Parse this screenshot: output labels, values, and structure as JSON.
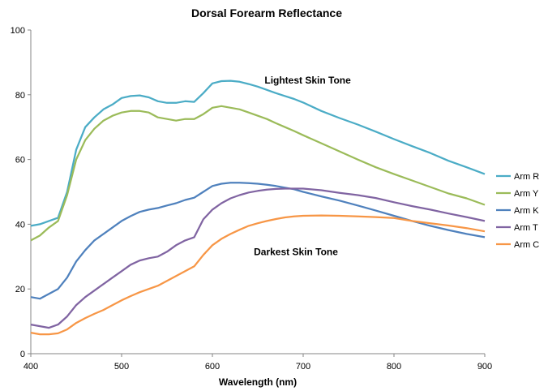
{
  "chart_data": {
    "type": "line",
    "title": "Dorsal Forearm Reflectance",
    "xlabel": "Wavelength (nm)",
    "ylabel": "",
    "xlim": [
      400,
      900
    ],
    "ylim": [
      0,
      100
    ],
    "xticks": [
      400,
      500,
      600,
      700,
      800,
      900
    ],
    "yticks": [
      0,
      20,
      40,
      60,
      80,
      100
    ],
    "grid": false,
    "legend_position": "right",
    "annotations": [
      {
        "text": "Lightest Skin Tone",
        "x": 705,
        "y": 83.5
      },
      {
        "text": "Darkest Skin Tone",
        "x": 692,
        "y": 30.5
      }
    ],
    "series": [
      {
        "name": "Arm R",
        "color": "#4BACC6",
        "x": [
          400,
          410,
          420,
          430,
          440,
          450,
          460,
          470,
          480,
          490,
          500,
          510,
          520,
          530,
          540,
          550,
          560,
          570,
          580,
          590,
          600,
          610,
          620,
          630,
          640,
          650,
          660,
          670,
          680,
          690,
          700,
          720,
          740,
          760,
          780,
          800,
          820,
          840,
          860,
          880,
          900
        ],
        "y": [
          39.5,
          40,
          41,
          42,
          50,
          63,
          70,
          73,
          75.5,
          77,
          79,
          79.6,
          79.8,
          79.2,
          78,
          77.5,
          77.5,
          78,
          77.8,
          80.5,
          83.5,
          84.2,
          84.3,
          84,
          83.3,
          82.5,
          81.5,
          80.5,
          79.6,
          78.7,
          77.6,
          75,
          72.8,
          70.8,
          68.6,
          66.3,
          64.1,
          62,
          59.6,
          57.6,
          55.5
        ]
      },
      {
        "name": "Arm Y",
        "color": "#9BBB59",
        "x": [
          400,
          410,
          420,
          430,
          440,
          450,
          460,
          470,
          480,
          490,
          500,
          510,
          520,
          530,
          540,
          550,
          560,
          570,
          580,
          590,
          600,
          610,
          620,
          630,
          640,
          650,
          660,
          670,
          680,
          690,
          700,
          720,
          740,
          760,
          780,
          800,
          820,
          840,
          860,
          880,
          900
        ],
        "y": [
          35,
          36.5,
          39,
          41,
          49,
          60,
          66,
          69.5,
          72,
          73.5,
          74.5,
          75,
          75,
          74.5,
          73,
          72.5,
          72,
          72.5,
          72.5,
          74,
          76,
          76.5,
          76,
          75.5,
          74.5,
          73.5,
          72.5,
          71.2,
          70,
          68.8,
          67.5,
          65,
          62.5,
          60,
          57.6,
          55.5,
          53.5,
          51.5,
          49.5,
          48,
          46
        ]
      },
      {
        "name": "Arm K",
        "color": "#4F81BD",
        "x": [
          400,
          410,
          420,
          430,
          440,
          450,
          460,
          470,
          480,
          490,
          500,
          510,
          520,
          530,
          540,
          550,
          560,
          570,
          580,
          590,
          600,
          610,
          620,
          630,
          640,
          650,
          660,
          670,
          680,
          690,
          700,
          720,
          740,
          760,
          780,
          800,
          820,
          840,
          860,
          880,
          900
        ],
        "y": [
          17.5,
          17,
          18.5,
          20,
          23.5,
          28.5,
          32,
          35,
          37,
          39,
          41,
          42.5,
          43.8,
          44.5,
          45,
          45.8,
          46.5,
          47.5,
          48.2,
          50,
          51.8,
          52.5,
          52.8,
          52.8,
          52.7,
          52.5,
          52.2,
          51.8,
          51.3,
          50.8,
          50,
          48.6,
          47.3,
          45.8,
          44.2,
          42.6,
          41,
          39.5,
          38.2,
          37,
          36
        ]
      },
      {
        "name": "Arm T",
        "color": "#8064A2",
        "x": [
          400,
          410,
          420,
          430,
          440,
          450,
          460,
          470,
          480,
          490,
          500,
          510,
          520,
          530,
          540,
          550,
          560,
          570,
          580,
          590,
          600,
          610,
          620,
          630,
          640,
          650,
          660,
          670,
          680,
          690,
          700,
          720,
          740,
          760,
          780,
          800,
          820,
          840,
          860,
          880,
          900
        ],
        "y": [
          9,
          8.5,
          8,
          9,
          11.5,
          15,
          17.5,
          19.5,
          21.5,
          23.5,
          25.5,
          27.5,
          28.8,
          29.5,
          30,
          31.5,
          33.5,
          35,
          36,
          41.5,
          44.5,
          46.5,
          48,
          49,
          49.8,
          50.3,
          50.7,
          50.9,
          51,
          51,
          51,
          50.5,
          49.7,
          49,
          48.1,
          46.8,
          45.6,
          44.5,
          43.3,
          42.2,
          41
        ]
      },
      {
        "name": "Arm C",
        "color": "#F79646",
        "x": [
          400,
          410,
          420,
          430,
          440,
          450,
          460,
          470,
          480,
          490,
          500,
          510,
          520,
          530,
          540,
          550,
          560,
          570,
          580,
          590,
          600,
          610,
          620,
          630,
          640,
          650,
          660,
          670,
          680,
          690,
          700,
          720,
          740,
          760,
          780,
          800,
          820,
          840,
          860,
          880,
          900
        ],
        "y": [
          6.5,
          6,
          6,
          6.3,
          7.5,
          9.5,
          11,
          12.3,
          13.5,
          15,
          16.5,
          17.8,
          19,
          20,
          21,
          22.5,
          24,
          25.5,
          27,
          30.5,
          33.5,
          35.5,
          37,
          38.3,
          39.5,
          40.3,
          41,
          41.6,
          42.1,
          42.4,
          42.6,
          42.7,
          42.6,
          42.4,
          42.2,
          41.9,
          41,
          40.3,
          39.6,
          38.8,
          37.8
        ]
      }
    ]
  }
}
